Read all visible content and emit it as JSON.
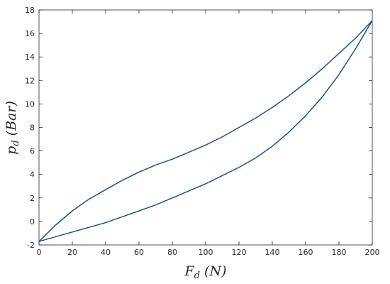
{
  "chart_data": {
    "type": "line",
    "xlabel": {
      "symbol": "F",
      "subscript": "d",
      "unit": "(N)"
    },
    "ylabel": {
      "symbol": "p",
      "subscript": "d",
      "unit": "(Bar)"
    },
    "x": [
      0,
      10,
      20,
      30,
      40,
      50,
      60,
      70,
      80,
      90,
      100,
      110,
      120,
      130,
      140,
      150,
      160,
      170,
      180,
      190,
      200
    ],
    "series": [
      {
        "color": "#1f4e99",
        "values": [
          -1.7,
          -0.3,
          0.9,
          1.9,
          2.7,
          3.5,
          4.2,
          4.8,
          5.3,
          5.9,
          6.5,
          7.2,
          8.0,
          8.8,
          9.7,
          10.7,
          11.8,
          13.0,
          14.3,
          15.6,
          17.1
        ]
      },
      {
        "color": "#1f4e99",
        "values": [
          -1.7,
          -1.3,
          -0.9,
          -0.5,
          -0.1,
          0.4,
          0.9,
          1.4,
          2.0,
          2.6,
          3.2,
          3.9,
          4.6,
          5.4,
          6.4,
          7.6,
          9.0,
          10.6,
          12.5,
          14.7,
          17.1
        ]
      }
    ],
    "xlim": [
      0,
      200
    ],
    "xticks": [
      0,
      20,
      40,
      60,
      80,
      100,
      120,
      140,
      160,
      180,
      200
    ],
    "ylim": [
      -2,
      18
    ],
    "yticks": [
      -2,
      0,
      2,
      4,
      6,
      8,
      10,
      12,
      14,
      16,
      18
    ],
    "grid": false
  }
}
